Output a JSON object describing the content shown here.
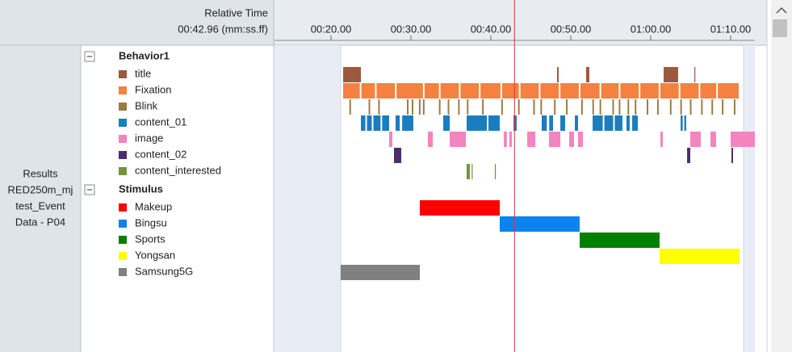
{
  "header": {
    "label": "Relative Time",
    "current_time": "00:42.96 (mm:ss.ff)"
  },
  "source": {
    "lines": [
      "Results",
      "RED250m_mj",
      "test_Event",
      "Data - P04"
    ]
  },
  "timeline": {
    "xlim": [
      12.93,
      73.03
    ],
    "ticks": [
      {
        "value": 20,
        "label": "00:20.00"
      },
      {
        "value": 30,
        "label": "00:30.00"
      },
      {
        "value": 40,
        "label": "00:40.00"
      },
      {
        "value": 50,
        "label": "00:50.00"
      },
      {
        "value": 60,
        "label": "01:00.00"
      },
      {
        "value": 70,
        "label": "01:10.00"
      }
    ],
    "cursor": 42.96,
    "data_range": [
      21.21,
      71.62
    ]
  },
  "groups": [
    {
      "name": "Behavior1",
      "rows": [
        {
          "name": "title",
          "color": "#9b5a3c",
          "segments": [
            [
              21.52,
              23.74
            ],
            [
              48.28,
              48.48
            ],
            [
              51.92,
              52.32
            ],
            [
              61.62,
              63.43
            ],
            [
              65.46,
              65.56
            ]
          ]
        },
        {
          "name": "Fixation",
          "color": "#f4813f",
          "segments": [
            [
              21.52,
              23.6
            ],
            [
              23.8,
              25.5
            ],
            [
              25.7,
              28.0
            ],
            [
              28.2,
              31.5
            ],
            [
              31.7,
              33.5
            ],
            [
              33.7,
              36.0
            ],
            [
              36.2,
              38.5
            ],
            [
              38.7,
              41.2
            ],
            [
              41.4,
              43.5
            ],
            [
              43.7,
              46.0
            ],
            [
              46.2,
              48.5
            ],
            [
              48.7,
              51.0
            ],
            [
              51.2,
              53.6
            ],
            [
              53.8,
              56.0
            ],
            [
              56.2,
              58.5
            ],
            [
              58.7,
              61.0
            ],
            [
              61.2,
              63.5
            ],
            [
              63.7,
              66.0
            ],
            [
              66.2,
              68.2
            ],
            [
              68.4,
              71.01
            ]
          ]
        },
        {
          "name": "Blink",
          "color": "#9c7b40",
          "segments": [
            [
              22.3,
              22.5
            ],
            [
              24.7,
              24.9
            ],
            [
              25.9,
              26.1
            ],
            [
              29.5,
              29.7
            ],
            [
              30.1,
              30.3
            ],
            [
              31.0,
              31.2
            ],
            [
              31.5,
              31.7
            ],
            [
              33.5,
              33.7
            ],
            [
              34.6,
              34.8
            ],
            [
              35.9,
              36.1
            ],
            [
              37.0,
              37.2
            ],
            [
              38.9,
              39.1
            ],
            [
              41.3,
              41.5
            ],
            [
              43.4,
              43.6
            ],
            [
              45.3,
              45.5
            ],
            [
              46.2,
              46.4
            ],
            [
              47.9,
              48.1
            ],
            [
              49.4,
              49.6
            ],
            [
              51.3,
              51.5
            ],
            [
              52.7,
              52.9
            ],
            [
              53.6,
              53.8
            ],
            [
              55.2,
              55.4
            ],
            [
              56.0,
              56.2
            ],
            [
              57.1,
              57.3
            ],
            [
              58.0,
              58.2
            ],
            [
              59.5,
              59.7
            ],
            [
              60.8,
              61.0
            ],
            [
              62.4,
              62.6
            ],
            [
              63.7,
              63.9
            ],
            [
              64.9,
              65.1
            ],
            [
              66.3,
              66.5
            ],
            [
              67.6,
              67.8
            ],
            [
              68.9,
              69.1
            ],
            [
              70.4,
              70.6
            ]
          ]
        },
        {
          "name": "content_01",
          "color": "#1b7dc0",
          "segments": [
            [
              23.74,
              24.3
            ],
            [
              24.5,
              25.1
            ],
            [
              25.3,
              26.2
            ],
            [
              26.4,
              27.27
            ],
            [
              28.08,
              28.6
            ],
            [
              28.9,
              30.3
            ],
            [
              34.04,
              34.85
            ],
            [
              36.97,
              39.5
            ],
            [
              39.7,
              41.11
            ],
            [
              42.83,
              43.23
            ],
            [
              46.36,
              47.0
            ],
            [
              47.3,
              47.78
            ],
            [
              48.69,
              49.29
            ],
            [
              50.51,
              50.91
            ],
            [
              52.73,
              54.0
            ],
            [
              54.2,
              55.3
            ],
            [
              55.5,
              56.46
            ],
            [
              56.97,
              57.37
            ],
            [
              57.68,
              58.38
            ],
            [
              63.74,
              64.0
            ],
            [
              64.2,
              64.44
            ]
          ]
        },
        {
          "name": "image",
          "color": "#f484c0",
          "segments": [
            [
              27.27,
              27.68
            ],
            [
              32.12,
              32.73
            ],
            [
              34.85,
              36.87
            ],
            [
              41.62,
              42.0
            ],
            [
              42.3,
              42.63
            ],
            [
              44.55,
              45.56
            ],
            [
              47.27,
              48.69
            ],
            [
              49.8,
              50.4
            ],
            [
              50.91,
              51.52
            ],
            [
              61.21,
              61.52
            ],
            [
              64.95,
              66.26
            ],
            [
              67.47,
              68.18
            ],
            [
              70.0,
              73.03
            ]
          ]
        },
        {
          "name": "content_02",
          "color": "#4b2e6e",
          "segments": [
            [
              27.88,
              28.79
            ],
            [
              64.55,
              64.95
            ],
            [
              70.1,
              70.3
            ]
          ]
        },
        {
          "name": "content_interested",
          "color": "#76923c",
          "segments": [
            [
              36.97,
              37.37
            ],
            [
              37.6,
              37.68
            ],
            [
              40.5,
              40.61
            ]
          ]
        }
      ]
    },
    {
      "name": "Stimulus",
      "rows": [
        {
          "name": "Makeup",
          "color": "#ff0000",
          "segments": [
            [
              31.11,
              41.11
            ]
          ]
        },
        {
          "name": "Bingsu",
          "color": "#0a84f0",
          "segments": [
            [
              41.11,
              51.11
            ]
          ]
        },
        {
          "name": "Sports",
          "color": "#008000",
          "segments": [
            [
              51.11,
              61.11
            ]
          ]
        },
        {
          "name": "Yongsan",
          "color": "#ffff00",
          "segments": [
            [
              61.11,
              71.11
            ]
          ]
        },
        {
          "name": "Samsung5G",
          "color": "#808080",
          "segments": [
            [
              21.21,
              31.11
            ]
          ]
        }
      ]
    }
  ]
}
